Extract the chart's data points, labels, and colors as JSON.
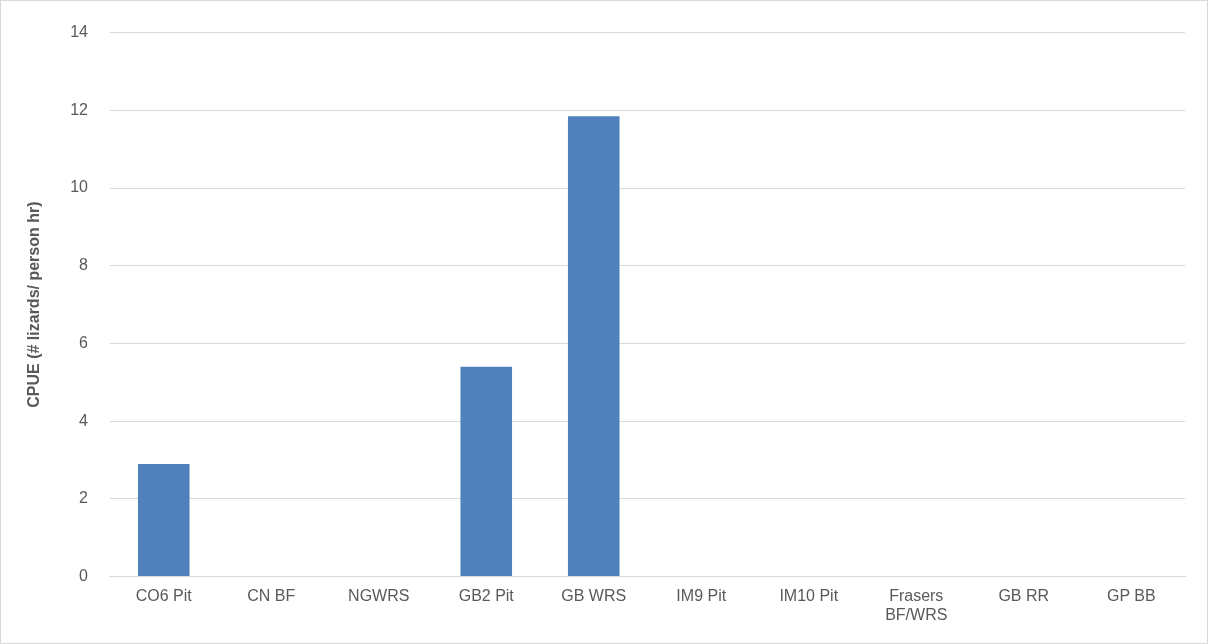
{
  "chart_data": {
    "type": "bar",
    "ylabel": "CPUE (# lizards/ person hr)",
    "categories": [
      "CO6 Pit",
      "CN BF",
      "NGWRS",
      "GB2 Pit",
      "GB WRS",
      "IM9 Pit",
      "IM10 Pit",
      "Frasers BF/WRS",
      "GB RR",
      "GP BB"
    ],
    "values": [
      2.9,
      0,
      0,
      5.4,
      11.85,
      0,
      0,
      0,
      0,
      0
    ],
    "color": "#4f81bd",
    "ylim": [
      0,
      14
    ],
    "yticks": [
      0,
      2,
      4,
      6,
      8,
      10,
      12,
      14
    ],
    "grid": "y",
    "legend": false
  }
}
